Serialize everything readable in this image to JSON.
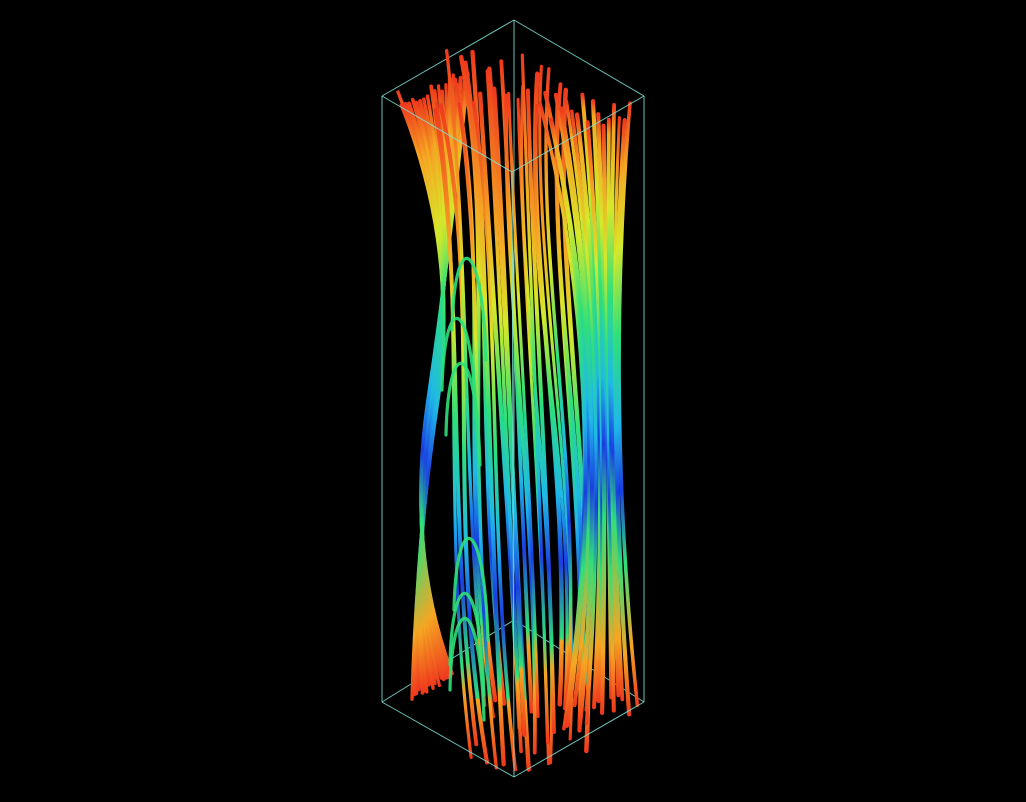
{
  "scene": {
    "subject": "streamline-tubes",
    "view": "3d-perspective",
    "background_color": "#000000",
    "outline_box_color": "#7fe3d8",
    "colormap": "rainbow-jet",
    "colormap_stops": [
      "#1a3fe0",
      "#1fb8e8",
      "#2ee07a",
      "#d7e82a",
      "#f5a623",
      "#ef3a1d"
    ],
    "bundles": [
      {
        "name": "left-sheet",
        "count": 20,
        "mid_color_offset": -0.05
      },
      {
        "name": "center-bundle",
        "count": 28,
        "mid_color_offset": 0.05
      },
      {
        "name": "right-sheet",
        "count": 18,
        "mid_color_offset": 0.0
      }
    ],
    "arches": {
      "count": 6,
      "color": "#2ee07a"
    }
  }
}
